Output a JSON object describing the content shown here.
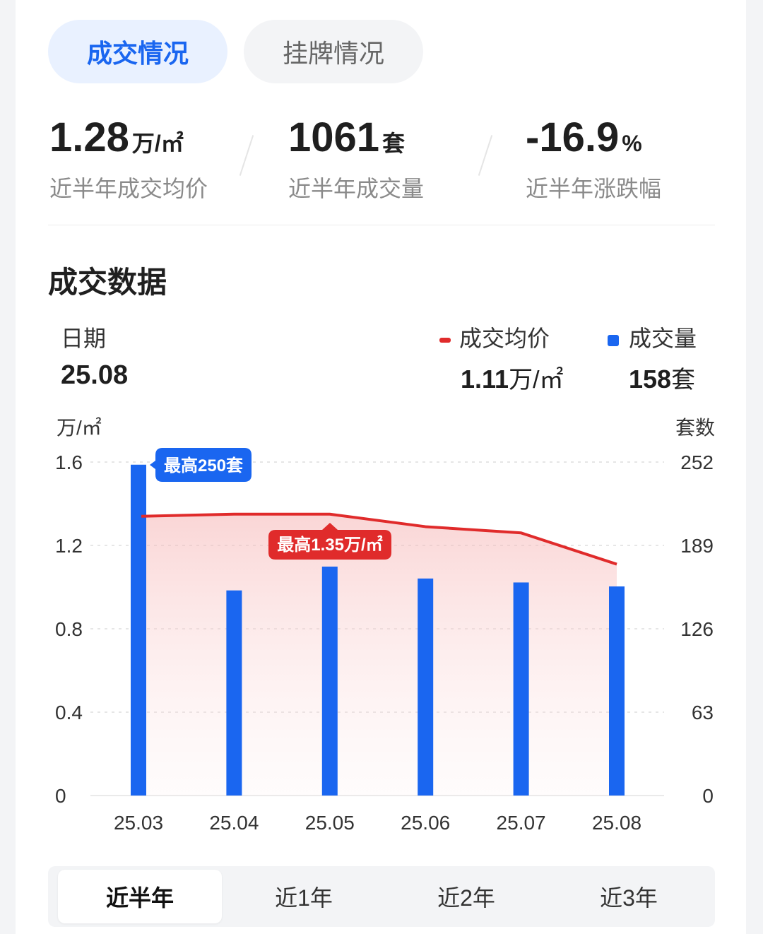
{
  "tabs": [
    {
      "label": "成交情况",
      "active": true
    },
    {
      "label": "挂牌情况",
      "active": false
    }
  ],
  "stats": [
    {
      "value": "1.28",
      "unit": "万/㎡",
      "label": "近半年成交均价"
    },
    {
      "value": "1061",
      "unit": "套",
      "label": "近半年成交量"
    },
    {
      "value": "-16.9",
      "unit": "%",
      "label": "近半年涨跌幅"
    }
  ],
  "section_title": "成交数据",
  "selection": {
    "date_label": "日期",
    "date_value": "25.08",
    "price_label": "成交均价",
    "price_value": "1.11",
    "price_unit": "万/㎡",
    "volume_label": "成交量",
    "volume_value": "158",
    "volume_unit": "套"
  },
  "colors": {
    "price_line": "#e02b2b",
    "bars": "#1a66f0",
    "accent": "#1a66f0"
  },
  "chart_data": {
    "type": "bar",
    "categories": [
      "25.03",
      "25.04",
      "25.05",
      "25.06",
      "25.07",
      "25.08"
    ],
    "series": [
      {
        "name": "成交量",
        "type": "bar",
        "axis": "right",
        "values": [
          250,
          155,
          173,
          164,
          161,
          158
        ]
      },
      {
        "name": "成交均价",
        "type": "line",
        "axis": "left",
        "values": [
          1.34,
          1.35,
          1.35,
          1.29,
          1.26,
          1.11
        ]
      }
    ],
    "y_left": {
      "unit": "万/㎡",
      "ticks": [
        "1.6",
        "1.2",
        "0.8",
        "0.4",
        "0"
      ],
      "range": [
        0,
        1.6
      ]
    },
    "y_right": {
      "unit": "套数",
      "ticks": [
        "252",
        "189",
        "126",
        "63",
        "0"
      ],
      "range": [
        0,
        252
      ]
    },
    "annotations": [
      "最高250套",
      "最高1.35万/㎡"
    ],
    "grid": true
  },
  "range_tabs": [
    {
      "label": "近半年",
      "active": true
    },
    {
      "label": "近1年",
      "active": false
    },
    {
      "label": "近2年",
      "active": false
    },
    {
      "label": "近3年",
      "active": false
    }
  ]
}
